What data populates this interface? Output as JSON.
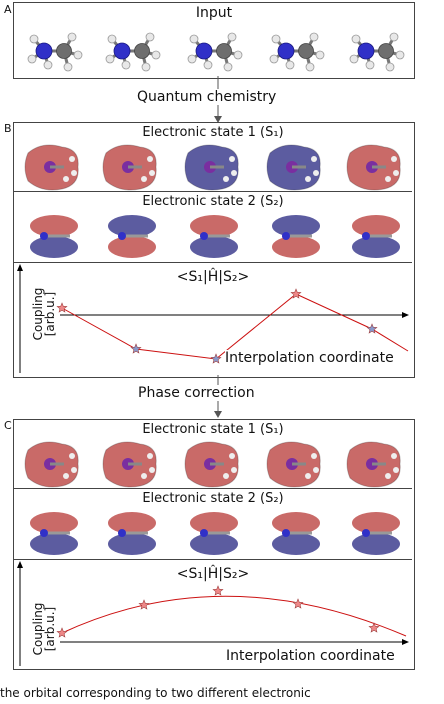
{
  "panels": {
    "a": {
      "letter": "A",
      "title": "Input"
    },
    "b": {
      "letter": "B"
    },
    "c": {
      "letter": "C"
    }
  },
  "steps": {
    "quantum": "Quantum chemistry",
    "phase": "Phase correction"
  },
  "state1": {
    "title": "Electronic state 1 (S₁)"
  },
  "state2": {
    "title": "Electronic state 2 (S₂)"
  },
  "coupling_plot": {
    "title": "<S₁|Ĥ|S₂>",
    "ylabel_line1": "Coupling",
    "ylabel_line2": "[arb.u.]",
    "xlabel": "Interpolation coordinate"
  },
  "colors": {
    "positive_lobe": "#c0504d",
    "negative_lobe": "#3f3f8f",
    "curve": "#cc1111",
    "star": "#ee8888",
    "star_neg": "#8899cc"
  },
  "caption": "the orbital corresponding to two different electronic"
}
